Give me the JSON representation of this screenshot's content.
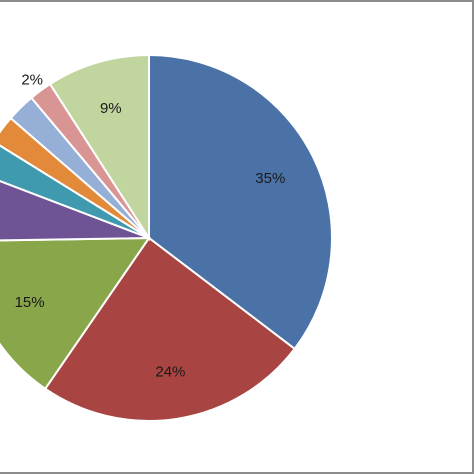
{
  "chart_data": {
    "type": "pie",
    "title": "",
    "slices": [
      {
        "label": "35%",
        "value": 35,
        "color": "#4A72A6"
      },
      {
        "label": "24%",
        "value": 24,
        "color": "#A84542"
      },
      {
        "label": "15%",
        "value": 15,
        "color": "#8AA64A"
      },
      {
        "label": "",
        "value": 6,
        "color": "#6E5494"
      },
      {
        "label": "",
        "value": 3,
        "color": "#3F9AB0"
      },
      {
        "label": "",
        "value": 2.5,
        "color": "#E2893A"
      },
      {
        "label": "",
        "value": 2.5,
        "color": "#95AFD6"
      },
      {
        "label": "2%",
        "value": 2,
        "color": "#D99594"
      },
      {
        "label": "9%",
        "value": 9,
        "color": "#C1D59F"
      }
    ],
    "start": "top, clockwise",
    "legend": "none"
  }
}
